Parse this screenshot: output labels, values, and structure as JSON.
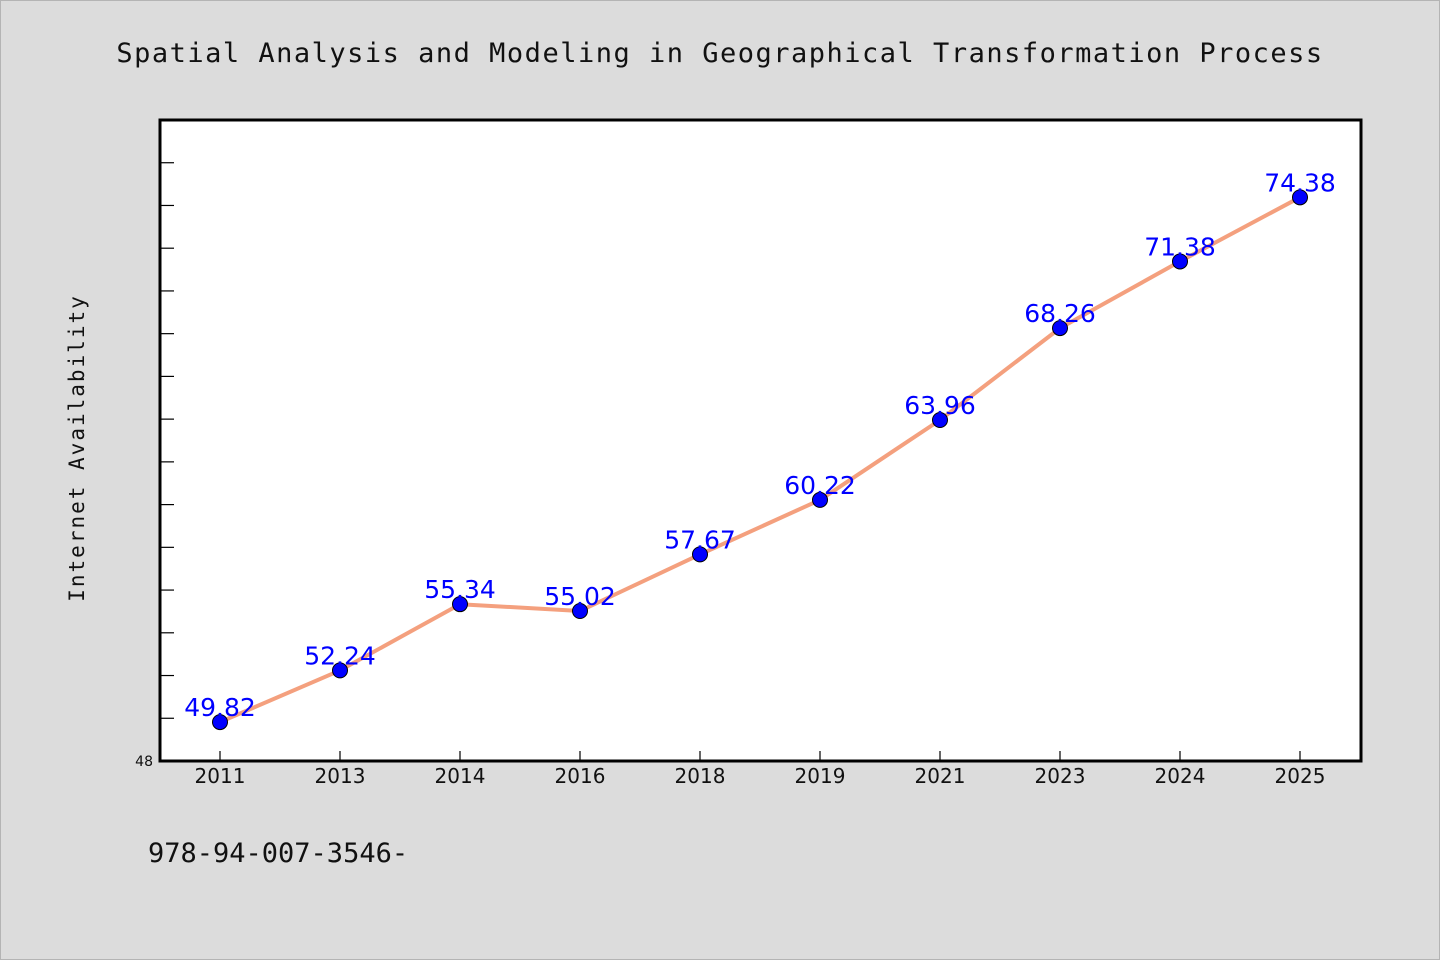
{
  "chart_data": {
    "type": "line",
    "title": "Spatial Analysis and Modeling in Geographical Transformation Process",
    "xlabel": "",
    "ylabel": "Internet Availability",
    "categories": [
      "2011",
      "2013",
      "2014",
      "2016",
      "2018",
      "2019",
      "2021",
      "2023",
      "2024",
      "2025"
    ],
    "series": [
      {
        "values": [
          49.82,
          52.24,
          55.34,
          55.02,
          57.67,
          60.22,
          63.96,
          68.26,
          71.38,
          74.38
        ],
        "labels": [
          "49.82",
          "52.24",
          "55.34",
          "55.02",
          "57.67",
          "60.22",
          "63.96",
          "68.26",
          "71.38",
          "74.38"
        ]
      }
    ],
    "ylim": [
      48,
      78
    ],
    "ymin_label": "48",
    "grid": false,
    "legend": "none",
    "colors": {
      "line": "#f4a07e",
      "marker": "#0000ff",
      "data_label": "#0000ff",
      "plot_bg": "#ffffff",
      "page_bg": "#dcdcdc"
    }
  },
  "footer": {
    "isbn": "978-94-007-3546-"
  }
}
